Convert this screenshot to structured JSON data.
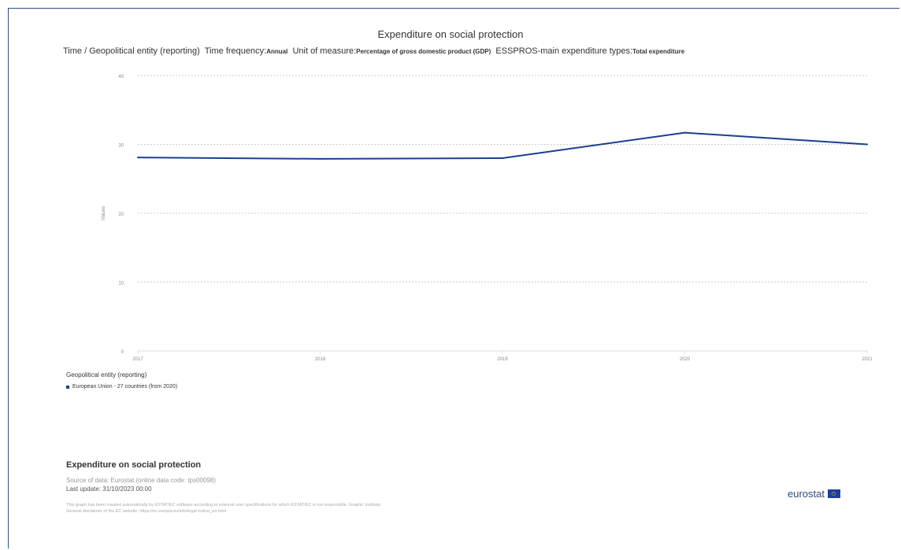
{
  "chart_data": {
    "type": "line",
    "title": "Expenditure on social protection",
    "subtitle": {
      "dims_label": "Time / Geopolitical entity (reporting)",
      "freq_label": "Time frequency:",
      "freq_value": "Annual",
      "unit_label": "Unit of measure:",
      "unit_value": "Percentage of gross domestic product (GDP)",
      "type_label": "ESSPROS-main expenditure types:",
      "type_value": "Total expenditure"
    },
    "ylabel": "Values",
    "ylim": [
      0,
      40
    ],
    "yticks": [
      0,
      10,
      20,
      30,
      40
    ],
    "x": [
      "2017",
      "2018",
      "2019",
      "2020",
      "2021"
    ],
    "series": [
      {
        "name": "European Union - 27 countries (from 2020)",
        "values": [
          28.1,
          27.9,
          28.0,
          31.7,
          30.0
        ],
        "color": "#1a3f8f"
      }
    ],
    "grid": true,
    "legend_title": "Geopolitical entity (reporting)"
  },
  "footer": {
    "title": "Expenditure on social protection",
    "source": "Source of data: Eurostat (online data code: tps00098)",
    "last_update": "Last update: 31/10/2023 00:00",
    "note_line1": "This graph has been created automatically by ESTAT/EC software according to external user specifications for which ESTAT/EC is not responsible. Graphic Institute:",
    "note_line2": "General disclaimer of the EC website: https://ec.europa.eu/info/legal-notice_en.html",
    "logo_text": "eurostat"
  },
  "colors": {
    "series": "#1a3f8f",
    "grid": "#cccccc",
    "frame": "#2d4f7f"
  }
}
